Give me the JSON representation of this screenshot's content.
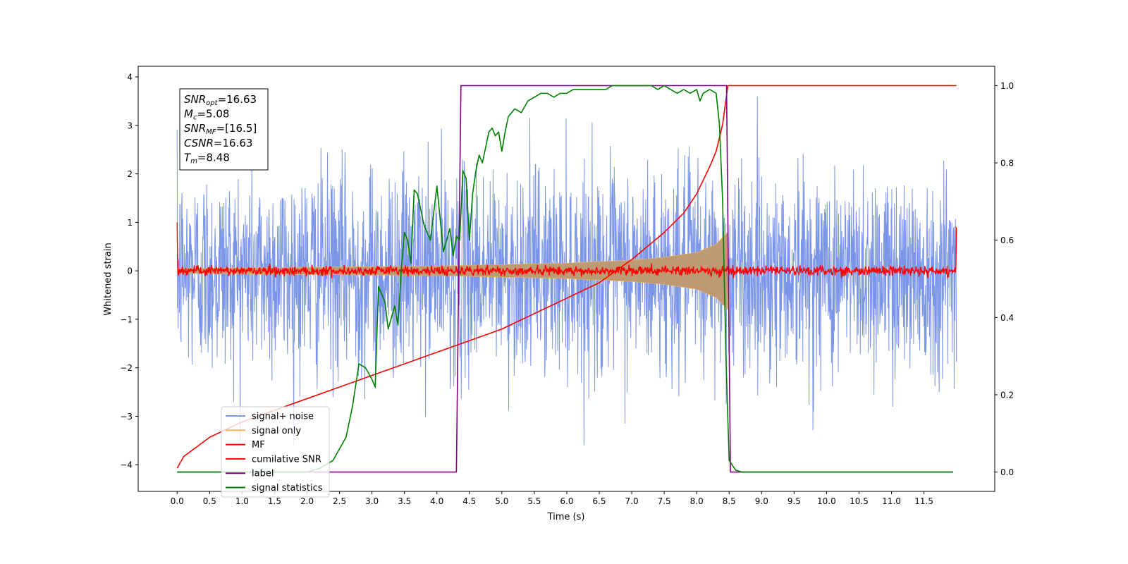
{
  "chart_data": {
    "type": "line",
    "xlabel": "Time (s)",
    "ylabel": "Whitened strain",
    "xlim": [
      -0.6,
      12.59
    ],
    "ylim_left": [
      -4.55,
      4.22
    ],
    "ylim_right": [
      -0.05,
      1.05
    ],
    "x_ticks": [
      0.0,
      0.5,
      1.0,
      1.5,
      2.0,
      2.5,
      3.0,
      3.5,
      4.0,
      4.5,
      5.0,
      5.5,
      6.0,
      6.5,
      7.0,
      7.5,
      8.0,
      8.5,
      9.0,
      9.5,
      10.0,
      10.5,
      11.0,
      11.5
    ],
    "x_tick_labels": [
      "0.0",
      "0.5",
      "1.0",
      "1.5",
      "2.0",
      "2.5",
      "3.0",
      "3.5",
      "4.0",
      "4.5",
      "5.0",
      "5.5",
      "6.0",
      "6.5",
      "7.0",
      "7.5",
      "8.0",
      "8.5",
      "9.0",
      "9.5",
      "10.0",
      "10.5",
      "11.0",
      "11.5"
    ],
    "y_left_ticks": [
      4,
      3,
      2,
      1,
      0,
      -1,
      -2,
      -3,
      -4
    ],
    "y_left_tick_labels": [
      "4",
      "3",
      "2",
      "1",
      "0",
      "−1",
      "−2",
      "−3",
      "−4"
    ],
    "y_right_ticks": [
      1.0,
      0.8,
      0.6,
      0.4,
      0.2,
      0.0
    ],
    "y_right_tick_labels": [
      "1.0",
      "0.8",
      "0.6",
      "0.4",
      "0.2",
      "0.0"
    ],
    "grid": false,
    "legend_position": "lower-left",
    "colors": {
      "noise": "#7b95e8",
      "signal": "#f5b55b",
      "signal_fill": "#bd9a74",
      "mf": "#ff0000",
      "cumulative_snr": "#ff0000",
      "label": "#800080",
      "statistics": "#008000"
    },
    "series": [
      {
        "name": "signal+ noise",
        "color_key": "noise",
        "axis": "left",
        "x_range": [
          0.0,
          12.0
        ],
        "amplitude": [
          -3.6,
          3.6
        ]
      },
      {
        "name": "signal only",
        "color_key": "signal",
        "axis": "left",
        "x_range": [
          0.0,
          8.48
        ],
        "envelope": {
          "x": [
            0.0,
            4.0,
            6.0,
            7.0,
            7.5,
            8.0,
            8.3,
            8.48
          ],
          "amp": [
            0.05,
            0.1,
            0.16,
            0.22,
            0.28,
            0.38,
            0.55,
            0.8
          ]
        }
      },
      {
        "name": "MF",
        "color_key": "mf",
        "axis": "left",
        "x_range": [
          0.0,
          12.0
        ],
        "amplitude": [
          -0.15,
          0.18
        ],
        "edge_values": [
          1.0,
          0.9
        ]
      },
      {
        "name": "cumilative SNR",
        "color_key": "cumulative_snr",
        "axis": "right",
        "x": [
          0.0,
          0.1,
          0.5,
          1.0,
          1.5,
          2.0,
          2.5,
          3.0,
          3.5,
          4.0,
          4.5,
          5.0,
          5.5,
          6.0,
          6.5,
          7.0,
          7.5,
          7.8,
          8.0,
          8.2,
          8.3,
          8.4,
          8.48,
          12.0
        ],
        "y": [
          0.01,
          0.04,
          0.09,
          0.13,
          0.16,
          0.19,
          0.22,
          0.25,
          0.28,
          0.31,
          0.34,
          0.37,
          0.41,
          0.45,
          0.49,
          0.55,
          0.62,
          0.67,
          0.72,
          0.79,
          0.83,
          0.9,
          1.0,
          1.0
        ]
      },
      {
        "name": "label",
        "color_key": "label",
        "axis": "right",
        "x": [
          0.0,
          4.3,
          4.37,
          8.46,
          8.52,
          11.95
        ],
        "y": [
          0.0,
          0.0,
          1.0,
          1.0,
          0.0,
          0.0
        ]
      },
      {
        "name": "signal statistics",
        "color_key": "statistics",
        "axis": "right",
        "x": [
          0.0,
          0.5,
          1.0,
          1.5,
          2.0,
          2.2,
          2.4,
          2.5,
          2.6,
          2.7,
          2.8,
          2.9,
          3.0,
          3.05,
          3.1,
          3.2,
          3.25,
          3.35,
          3.4,
          3.45,
          3.5,
          3.55,
          3.6,
          3.65,
          3.7,
          3.8,
          3.9,
          4.0,
          4.1,
          4.2,
          4.25,
          4.3,
          4.35,
          4.4,
          4.45,
          4.5,
          4.55,
          4.6,
          4.65,
          4.7,
          4.75,
          4.8,
          4.85,
          4.9,
          4.95,
          5.0,
          5.05,
          5.1,
          5.2,
          5.3,
          5.4,
          5.5,
          5.6,
          5.7,
          5.8,
          5.9,
          6.0,
          6.1,
          6.2,
          6.3,
          6.4,
          6.5,
          6.6,
          6.7,
          6.8,
          6.9,
          7.0,
          7.1,
          7.2,
          7.3,
          7.4,
          7.5,
          7.6,
          7.7,
          7.8,
          7.9,
          8.0,
          8.05,
          8.1,
          8.2,
          8.3,
          8.35,
          8.4,
          8.45,
          8.5,
          8.6,
          8.7,
          8.8,
          9.0,
          10.0,
          11.0,
          11.95
        ],
        "y": [
          0.0,
          0.0,
          0.0,
          0.0,
          0.0,
          0.01,
          0.03,
          0.06,
          0.09,
          0.17,
          0.28,
          0.27,
          0.24,
          0.22,
          0.48,
          0.44,
          0.37,
          0.43,
          0.38,
          0.52,
          0.62,
          0.6,
          0.54,
          0.73,
          0.72,
          0.64,
          0.6,
          0.74,
          0.57,
          0.63,
          0.56,
          0.61,
          0.6,
          0.78,
          0.76,
          0.6,
          0.72,
          0.78,
          0.82,
          0.8,
          0.84,
          0.88,
          0.89,
          0.87,
          0.88,
          0.83,
          0.88,
          0.92,
          0.94,
          0.93,
          0.96,
          0.97,
          0.98,
          0.98,
          0.97,
          0.98,
          0.98,
          0.99,
          0.99,
          0.99,
          0.99,
          0.99,
          0.99,
          1.0,
          1.0,
          1.0,
          1.0,
          1.0,
          1.0,
          1.0,
          0.99,
          1.0,
          0.99,
          0.98,
          0.99,
          0.98,
          0.99,
          0.96,
          0.98,
          0.99,
          0.98,
          0.9,
          0.7,
          0.3,
          0.03,
          0.005,
          0.0,
          0.0,
          0.0,
          0.0,
          0.0,
          0.0
        ]
      }
    ],
    "annotation_box": [
      {
        "base": "SNR",
        "sub": "opt",
        "value": "=16.63"
      },
      {
        "base": "M",
        "sub": "c",
        "value": "=5.08"
      },
      {
        "base": "SNR",
        "sub": "MF",
        "value": "=[16.5]"
      },
      {
        "base": "CSNR",
        "sub": "",
        "value": "=16.63"
      },
      {
        "base": "T",
        "sub": "m",
        "value": "=8.48"
      }
    ]
  }
}
